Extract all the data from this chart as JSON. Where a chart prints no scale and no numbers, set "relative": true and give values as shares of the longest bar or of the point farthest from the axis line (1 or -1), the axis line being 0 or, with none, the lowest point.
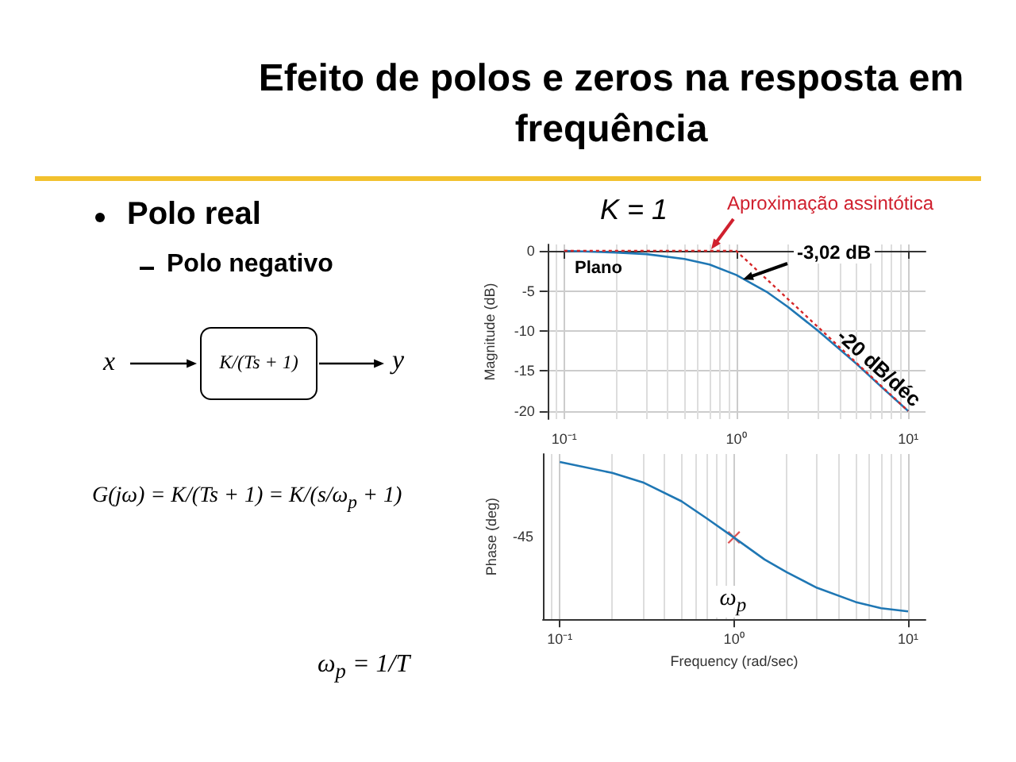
{
  "chart_data": [
    {
      "type": "line",
      "title": "Efeito de polos e zeros na resposta em frequência",
      "ylabel": "Magnitude (dB)",
      "x": [
        0.1,
        0.2,
        0.3,
        0.5,
        0.7,
        1,
        1.5,
        2,
        3,
        5,
        7,
        10
      ],
      "series": [
        {
          "color": "#1f77b4",
          "values": [
            0,
            -0.2,
            -0.4,
            -1,
            -1.7,
            -3,
            -5.1,
            -7,
            -10,
            -14.1,
            -17,
            -20
          ]
        },
        {
          "color": "#d62728",
          "x": [
            0.1,
            1,
            10
          ],
          "values": [
            0,
            0,
            -20
          ],
          "line_style": "dotted"
        }
      ],
      "xlim": [
        0.08,
        12.6
      ],
      "ylim": [
        -21,
        0.8
      ],
      "xticks": [
        {
          "value": 0.1,
          "label": "10⁻¹"
        },
        {
          "value": 1,
          "label": "10⁰"
        },
        {
          "value": 10,
          "label": "10¹"
        }
      ],
      "yticks": [
        0,
        -5,
        -10,
        -15,
        -20
      ],
      "log": "x",
      "grid": true,
      "marker": "none",
      "annotations": [
        "K = 1",
        "Aproximação assintótica",
        "-3,02 dB",
        "Plano",
        "-20 dB/déc",
        "Polo real",
        "Polo negativo",
        "x",
        "y",
        "K/(Ts + 1)",
        "G(jω) = K/(Ts + 1) = K/(s/ω$_{p}$ + 1)",
        "ω$_{p}$ = 1/T"
      ]
    },
    {
      "type": "line",
      "xlabel": "Frequency (rad/sec)",
      "ylabel": "Phase (deg)",
      "x": [
        0.1,
        0.2,
        0.3,
        0.5,
        0.7,
        1,
        1.5,
        2,
        3,
        5,
        7,
        10
      ],
      "series": [
        {
          "color": "#1f77b4",
          "values": [
            1,
            0.93,
            0.87,
            0.75,
            0.64,
            0.52,
            0.38,
            0.3,
            0.2,
            0.11,
            0.07,
            0.05
          ]
        },
        {
          "type": "scatter",
          "color": "#d62728",
          "x": [
            1
          ],
          "values": [
            0.52
          ],
          "marker": "cross"
        }
      ],
      "relative": true,
      "xlim": [
        0.08,
        12.6
      ],
      "xticks": [
        {
          "value": 0.1,
          "label": "10⁻¹"
        },
        {
          "value": 1,
          "label": "10⁰"
        },
        {
          "value": 10,
          "label": "10¹"
        }
      ],
      "log": "x",
      "grid": "x",
      "marker": "none",
      "annotations": [
        "ω$_{p}$",
        "-45"
      ]
    }
  ]
}
